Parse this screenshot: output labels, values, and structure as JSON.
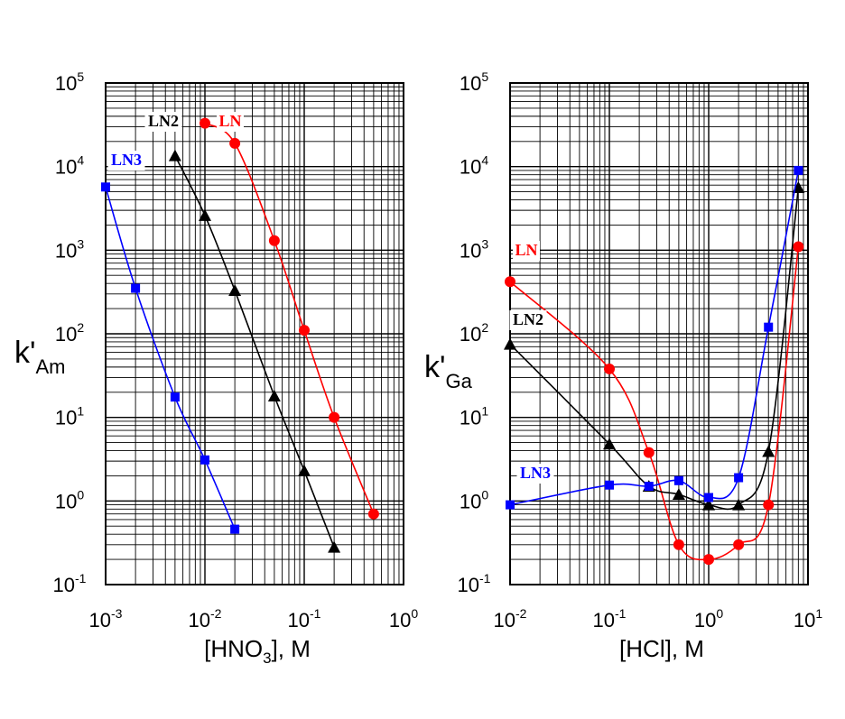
{
  "chart_data": [
    {
      "type": "line",
      "xscale": "log",
      "yscale": "log",
      "xlim": [
        0.001,
        1
      ],
      "ylim": [
        0.1,
        100000
      ],
      "grid": true,
      "x_ticks": [
        {
          "base": "10",
          "exp": "-3"
        },
        {
          "base": "10",
          "exp": "-2"
        },
        {
          "base": "10",
          "exp": "-1"
        },
        {
          "base": "10",
          "exp": "0"
        }
      ],
      "y_ticks": [
        {
          "base": "10",
          "exp": "-1"
        },
        {
          "base": "10",
          "exp": "0"
        },
        {
          "base": "10",
          "exp": "1"
        },
        {
          "base": "10",
          "exp": "2"
        },
        {
          "base": "10",
          "exp": "3"
        },
        {
          "base": "10",
          "exp": "4"
        },
        {
          "base": "10",
          "exp": "5"
        }
      ],
      "xlabel": {
        "pre": "[HNO",
        "sub": "3",
        "post": "], M"
      },
      "ylabel": {
        "main": "k'",
        "sub": "Am"
      },
      "series": [
        {
          "name": "LN",
          "color": "#ff0000",
          "marker": "circle",
          "x": [
            0.01,
            0.02,
            0.05,
            0.1,
            0.2,
            0.5
          ],
          "y": [
            33000,
            19000,
            1300,
            110,
            10,
            0.7
          ]
        },
        {
          "name": "LN2",
          "color": "#000000",
          "marker": "triangle",
          "x": [
            0.005,
            0.01,
            0.02,
            0.05,
            0.1,
            0.2
          ],
          "y": [
            13500,
            2600,
            330,
            18,
            2.3,
            0.28
          ]
        },
        {
          "name": "LN3",
          "color": "#0000ff",
          "marker": "square",
          "x": [
            0.001,
            0.002,
            0.005,
            0.01,
            0.02
          ],
          "y": [
            5700,
            350,
            17.5,
            3.1,
            0.46
          ]
        }
      ]
    },
    {
      "type": "line",
      "xscale": "log",
      "yscale": "log",
      "xlim": [
        0.01,
        10
      ],
      "ylim": [
        0.1,
        100000
      ],
      "grid": true,
      "x_ticks": [
        {
          "base": "10",
          "exp": "-2"
        },
        {
          "base": "10",
          "exp": "-1"
        },
        {
          "base": "10",
          "exp": "0"
        },
        {
          "base": "10",
          "exp": "1"
        }
      ],
      "y_ticks": [
        {
          "base": "10",
          "exp": "-1"
        },
        {
          "base": "10",
          "exp": "0"
        },
        {
          "base": "10",
          "exp": "1"
        },
        {
          "base": "10",
          "exp": "2"
        },
        {
          "base": "10",
          "exp": "3"
        },
        {
          "base": "10",
          "exp": "4"
        },
        {
          "base": "10",
          "exp": "5"
        }
      ],
      "xlabel": {
        "pre": "[HCl], M",
        "sub": "",
        "post": ""
      },
      "ylabel": {
        "main": "k'",
        "sub": "Ga"
      },
      "series": [
        {
          "name": "LN",
          "color": "#ff0000",
          "marker": "circle",
          "x": [
            0.01,
            0.1,
            0.25,
            0.5,
            1,
            2,
            4,
            8
          ],
          "y": [
            420,
            38,
            3.8,
            0.3,
            0.2,
            0.3,
            0.9,
            1100
          ]
        },
        {
          "name": "LN2",
          "color": "#000000",
          "marker": "triangle",
          "x": [
            0.01,
            0.1,
            0.25,
            0.5,
            1,
            2,
            4,
            8
          ],
          "y": [
            75,
            4.8,
            1.5,
            1.2,
            0.9,
            0.9,
            3.9,
            5600
          ]
        },
        {
          "name": "LN3",
          "color": "#0000ff",
          "marker": "square",
          "x": [
            0.01,
            0.1,
            0.25,
            0.5,
            1,
            2,
            4,
            8
          ],
          "y": [
            0.9,
            1.55,
            1.5,
            1.75,
            1.1,
            1.9,
            120,
            9000
          ]
        }
      ]
    }
  ]
}
